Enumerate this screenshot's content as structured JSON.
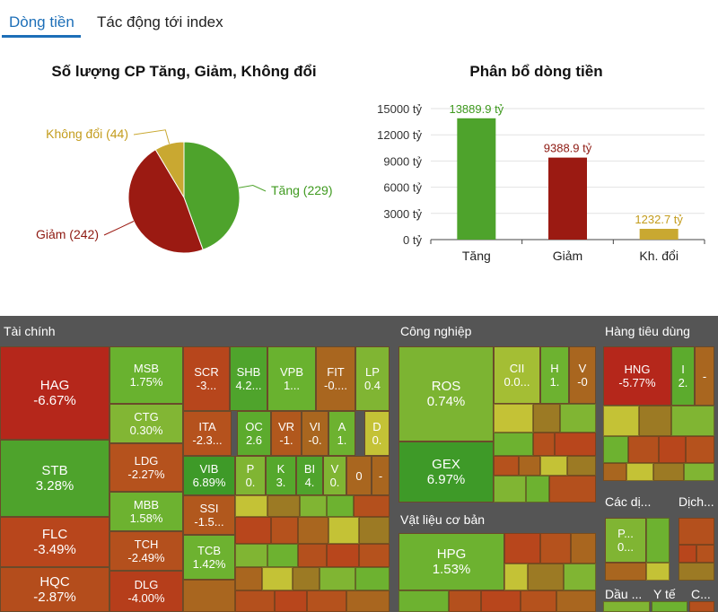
{
  "tabs": [
    {
      "label": "Dòng tiền",
      "active": true
    },
    {
      "label": "Tác động tới index",
      "active": false
    }
  ],
  "pie_title": "Số lượng CP Tăng, Giảm, Không đổi",
  "bar_title": "Phân bổ dòng tiền",
  "colors": {
    "up": "#4ea32c",
    "down": "#9b1a12",
    "flat": "#c9a831",
    "up_text": "#3f9a1f",
    "down_text": "#8e1a12",
    "flat_text": "#c39c1c"
  },
  "chart_data": [
    {
      "type": "pie",
      "title": "Số lượng CP Tăng, Giảm, Không đổi",
      "slices": [
        {
          "name": "Tăng",
          "value": 229,
          "label": "Tăng (229)"
        },
        {
          "name": "Giảm",
          "value": 242,
          "label": "Giảm (242)"
        },
        {
          "name": "Không đổi",
          "value": 44,
          "label": "Không đổi (44)"
        }
      ]
    },
    {
      "type": "bar",
      "title": "Phân bổ dòng tiền",
      "categories": [
        "Tăng",
        "Giảm",
        "Kh. đổi"
      ],
      "values": [
        13889.9,
        9388.9,
        1232.7
      ],
      "data_labels": [
        "13889.9 tỷ",
        "9388.9 tỷ",
        "1232.7 tỷ"
      ],
      "yticks": [
        "0 tỷ",
        "3000 tỷ",
        "6000 tỷ",
        "9000 tỷ",
        "12000 tỷ",
        "15000 tỷ"
      ],
      "ylim": [
        0,
        15000
      ]
    }
  ],
  "treemap": {
    "sectors": [
      "Tài chính",
      "Công nghiệp",
      "Hàng tiêu dùng",
      "Vật liệu cơ bản",
      "Các dị...",
      "Dịch...",
      "Dầu ...",
      "Y tế",
      "C..."
    ],
    "tiles": [
      {
        "name": "HAG",
        "change": "-6.67%",
        "color": "#b5271b"
      },
      {
        "name": "STB",
        "change": "3.28%",
        "color": "#4ea32c"
      },
      {
        "name": "FLC",
        "change": "-3.49%",
        "color": "#b8461c"
      },
      {
        "name": "HQC",
        "change": "-2.87%",
        "color": "#b44d1c"
      },
      {
        "name": "MSB",
        "change": "1.75%",
        "color": "#69b22f"
      },
      {
        "name": "CTG",
        "change": "0.30%",
        "color": "#82b634"
      },
      {
        "name": "LDG",
        "change": "-2.27%",
        "color": "#b5521d"
      },
      {
        "name": "MBB",
        "change": "1.58%",
        "color": "#6db230"
      },
      {
        "name": "TCH",
        "change": "-2.49%",
        "color": "#b4501d"
      },
      {
        "name": "DLG",
        "change": "-4.00%",
        "color": "#b63e1b"
      },
      {
        "name": "SCR",
        "change": "-3...",
        "color": "#b7461c"
      },
      {
        "name": "SHB",
        "change": "4.2...",
        "color": "#4fa42c"
      },
      {
        "name": "VPB",
        "change": "1...",
        "color": "#69b22f"
      },
      {
        "name": "FIT",
        "change": "-0....",
        "color": "#a9661f"
      },
      {
        "name": "LP",
        "change": "0.4",
        "color": "#80b533"
      },
      {
        "name": "ITA",
        "change": "-2.3...",
        "color": "#b5521d"
      },
      {
        "name": "OC",
        "change": "2.6",
        "color": "#5cab2d"
      },
      {
        "name": "VR",
        "change": "-1.",
        "color": "#b1581d"
      },
      {
        "name": "VI",
        "change": "-0.",
        "color": "#a9661f"
      },
      {
        "name": "A",
        "change": "1.",
        "color": "#6db230"
      },
      {
        "name": "D",
        "change": "0.",
        "color": "#c4c236"
      },
      {
        "name": "VIB",
        "change": "6.89%",
        "color": "#3e9a28"
      },
      {
        "name": "P",
        "change": "0.",
        "color": "#80b533"
      },
      {
        "name": "K",
        "change": "3.",
        "color": "#55a82c"
      },
      {
        "name": "BI",
        "change": "4.",
        "color": "#4fa42c"
      },
      {
        "name": "V",
        "change": "0.",
        "color": "#80b533"
      },
      {
        "name": "0",
        "change": "",
        "color": "#a9661f"
      },
      {
        "name": "-",
        "change": "",
        "color": "#a9661f"
      },
      {
        "name": "SSI",
        "change": "-1.5...",
        "color": "#b1581d"
      },
      {
        "name": "TCB",
        "change": "1.42%",
        "color": "#6db230"
      },
      {
        "name": "ROS",
        "change": "0.74%",
        "color": "#7cb432"
      },
      {
        "name": "GEX",
        "change": "6.97%",
        "color": "#3e9a28"
      },
      {
        "name": "CII",
        "change": "0.0...",
        "color": "#a4be34"
      },
      {
        "name": "H",
        "change": "1.",
        "color": "#6db230"
      },
      {
        "name": "V",
        "change": "-0",
        "color": "#a9661f"
      },
      {
        "name": "HPG",
        "change": "1.53%",
        "color": "#6db230"
      },
      {
        "name": "HNG",
        "change": "-5.77%",
        "color": "#b5271b"
      },
      {
        "name": "I",
        "change": "2.",
        "color": "#5cab2d"
      },
      {
        "name": "-",
        "change": "",
        "color": "#a9661f"
      },
      {
        "name": "P...",
        "change": "0...",
        "color": "#80b533"
      }
    ]
  }
}
